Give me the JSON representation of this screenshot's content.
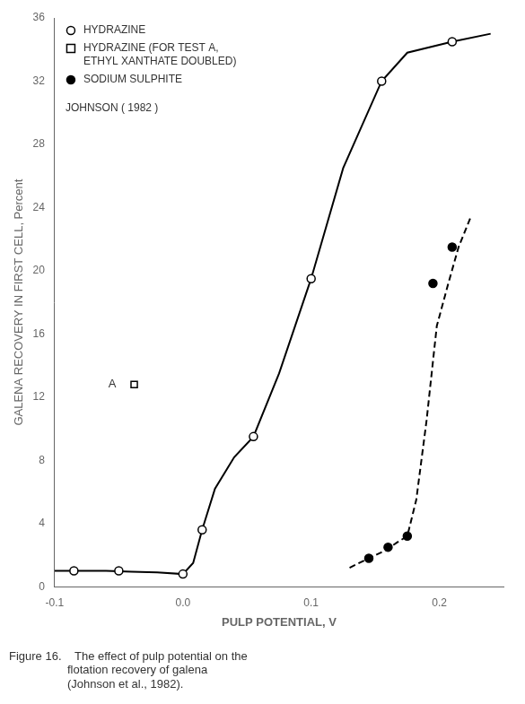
{
  "chart_data": {
    "type": "line",
    "title": [
      "Figure 16.    The effect of pulp potential on the",
      "                  flotation recovery of galena",
      "                  (Johnson et al., 1982)."
    ],
    "xlabel": "PULP POTENTIAL, V",
    "ylabel": "GALENA RECOVERY IN FIRST CELL, Percent",
    "xlim": [
      -0.1,
      0.25
    ],
    "ylim": [
      0,
      36
    ],
    "xticks": [
      -0.1,
      {
        "value": 0.0,
        "label": "0.0"
      },
      0.1,
      0.2
    ],
    "yticks": [
      0,
      4,
      8,
      12,
      16,
      20,
      24,
      28,
      32,
      36
    ],
    "grid": false,
    "legend": "upper left",
    "series": [
      {
        "type": "line",
        "line_style": "solid",
        "color": "#000000",
        "x": [
          -0.1,
          -0.085,
          -0.06,
          -0.04,
          -0.02,
          0.0,
          0.008,
          0.015,
          0.025,
          0.04,
          0.055,
          0.075,
          0.1,
          0.125,
          0.155,
          0.175,
          0.21,
          0.24
        ],
        "values": [
          1.0,
          1.0,
          1.0,
          0.95,
          0.9,
          0.8,
          1.5,
          3.6,
          6.2,
          8.2,
          9.5,
          13.5,
          19.5,
          26.5,
          32.0,
          33.8,
          34.5,
          35.0
        ]
      },
      {
        "name": "HYDRAZINE",
        "type": "scatter",
        "marker": "open_circle",
        "color": "#000000",
        "x": [
          -0.085,
          -0.05,
          0.0,
          0.015,
          0.055,
          0.1,
          0.155,
          0.21
        ],
        "values": [
          1.0,
          1.0,
          0.8,
          3.6,
          9.5,
          19.5,
          32.0,
          34.5
        ]
      },
      {
        "name": "HYDRAZINE (FOR TEST A,\nETHYL XANTHATE DOUBLED)",
        "type": "scatter",
        "marker": "open_square",
        "color": "#000000",
        "x": [
          -0.038
        ],
        "values": [
          12.8
        ]
      },
      {
        "type": "line",
        "line_style": "dashed",
        "color": "#000000",
        "x": [
          0.13,
          0.145,
          0.158,
          0.167,
          0.175,
          0.182,
          0.19,
          0.198,
          0.207,
          0.215,
          0.225
        ],
        "values": [
          1.2,
          1.8,
          2.3,
          2.8,
          3.2,
          5.5,
          10.5,
          16.5,
          19.2,
          21.5,
          23.5
        ]
      },
      {
        "name": "SODIUM SULPHITE",
        "type": "scatter",
        "marker": "filled_circle",
        "color": "#000000",
        "x": [
          0.145,
          0.16,
          0.175,
          0.195,
          0.21
        ],
        "values": [
          1.8,
          2.5,
          3.2,
          19.2,
          21.5
        ]
      }
    ],
    "annotations": [
      {
        "text": "A",
        "x": -0.052,
        "y": 12.8
      },
      {
        "text": "JOHNSON ( 1982 )"
      }
    ]
  }
}
